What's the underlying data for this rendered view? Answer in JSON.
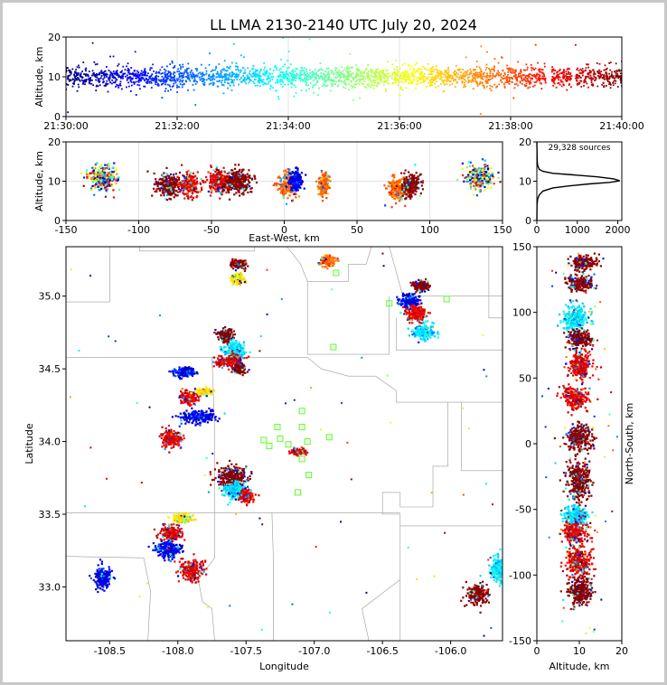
{
  "chart_data": [
    {
      "type": "scatter",
      "panel": "time-altitude",
      "title": "LL LMA 2130-2140 UTC July 20, 2024",
      "xlabel": "",
      "ylabel": "Altitude, km",
      "xlim": [
        "21:30:00",
        "21:40:00"
      ],
      "ylim": [
        0,
        20
      ],
      "x_ticks": [
        "21:30:00",
        "21:32:00",
        "21:34:00",
        "21:36:00",
        "21:38:00",
        "21:40:00"
      ],
      "y_ticks": [
        0,
        10,
        20
      ],
      "point_altitude_center_km": 10,
      "point_color_by": "time",
      "grid": true,
      "time_gaps": [
        {
          "start": "21:38:38",
          "end": "21:38:44"
        },
        {
          "start": "21:39:06",
          "end": "21:39:10"
        }
      ]
    },
    {
      "type": "scatter",
      "panel": "east-west-altitude",
      "xlabel": "East-West, km",
      "ylabel": "Altitude, km",
      "xlim": [
        -150,
        150
      ],
      "ylim": [
        0,
        20
      ],
      "x_ticks": [
        -150,
        -100,
        -50,
        0,
        50,
        100,
        150
      ],
      "y_ticks": [
        0,
        10,
        20
      ],
      "grid": true,
      "clusters_km": [
        {
          "x": -125,
          "spread": 8,
          "alt": 11,
          "color": "mixed"
        },
        {
          "x": -80,
          "spread": 7,
          "alt": 9,
          "color": "dark-red"
        },
        {
          "x": -65,
          "spread": 6,
          "alt": 9,
          "color": "red"
        },
        {
          "x": -45,
          "spread": 6,
          "alt": 10,
          "color": "red"
        },
        {
          "x": -32,
          "spread": 8,
          "alt": 10,
          "color": "dark-red"
        },
        {
          "x": 2,
          "spread": 5,
          "alt": 9,
          "color": "orange"
        },
        {
          "x": 8,
          "spread": 4,
          "alt": 10,
          "color": "blue"
        },
        {
          "x": 27,
          "spread": 3,
          "alt": 9,
          "color": "orange"
        },
        {
          "x": 78,
          "spread": 5,
          "alt": 8,
          "color": "orange"
        },
        {
          "x": 87,
          "spread": 5,
          "alt": 9,
          "color": "dark-red"
        },
        {
          "x": 135,
          "spread": 8,
          "alt": 11,
          "color": "mixed"
        }
      ]
    },
    {
      "type": "line",
      "panel": "altitude-histogram",
      "annotation": "29,328 sources",
      "xlim": [
        0,
        2100
      ],
      "ylim": [
        0,
        20
      ],
      "x_ticks": [
        0,
        1000,
        2000
      ],
      "y_ticks": [
        0,
        10,
        20
      ],
      "x": [
        0,
        5,
        20,
        60,
        150,
        400,
        800,
        1300,
        1800,
        2050,
        1900,
        1500,
        900,
        400,
        150,
        60,
        40,
        20,
        8,
        0
      ],
      "y": [
        0,
        4,
        5.5,
        6.5,
        7.5,
        8.3,
        8.8,
        9.3,
        9.7,
        10.1,
        10.6,
        11.1,
        11.6,
        12.0,
        12.5,
        13.0,
        13.5,
        14.0,
        15.0,
        20
      ]
    },
    {
      "type": "scatter",
      "panel": "plan-view",
      "xlabel": "Longitude",
      "ylabel": "Latitude",
      "xlim": [
        -108.82,
        -105.62
      ],
      "ylim": [
        32.63,
        35.34
      ],
      "x_ticks": [
        -108.5,
        -108.0,
        -107.5,
        -107.0,
        -106.5,
        -106.0
      ],
      "y_ticks": [
        33.0,
        33.5,
        34.0,
        34.5,
        35.0
      ],
      "clusters": [
        {
          "lon": -107.55,
          "lat": 35.22,
          "rx": 0.05,
          "ry": 0.03,
          "color": "dark-red"
        },
        {
          "lon": -107.56,
          "lat": 35.12,
          "rx": 0.04,
          "ry": 0.03,
          "color": "yellow"
        },
        {
          "lon": -106.9,
          "lat": 35.24,
          "rx": 0.05,
          "ry": 0.03,
          "color": "orange"
        },
        {
          "lon": -106.22,
          "lat": 35.07,
          "rx": 0.05,
          "ry": 0.03,
          "color": "dark-red"
        },
        {
          "lon": -106.3,
          "lat": 34.97,
          "rx": 0.07,
          "ry": 0.04,
          "color": "blue"
        },
        {
          "lon": -106.25,
          "lat": 34.88,
          "rx": 0.07,
          "ry": 0.05,
          "color": "red"
        },
        {
          "lon": -106.2,
          "lat": 34.75,
          "rx": 0.07,
          "ry": 0.05,
          "color": "cyan"
        },
        {
          "lon": -107.65,
          "lat": 34.73,
          "rx": 0.05,
          "ry": 0.04,
          "color": "dark-red"
        },
        {
          "lon": -107.58,
          "lat": 34.63,
          "rx": 0.07,
          "ry": 0.05,
          "color": "cyan"
        },
        {
          "lon": -107.62,
          "lat": 34.55,
          "rx": 0.09,
          "ry": 0.04,
          "color": "red"
        },
        {
          "lon": -107.55,
          "lat": 34.5,
          "rx": 0.04,
          "ry": 0.03,
          "color": "dark-red"
        },
        {
          "lon": -107.95,
          "lat": 34.48,
          "rx": 0.07,
          "ry": 0.03,
          "color": "blue"
        },
        {
          "lon": -107.92,
          "lat": 34.3,
          "rx": 0.06,
          "ry": 0.04,
          "color": "red"
        },
        {
          "lon": -107.8,
          "lat": 34.34,
          "rx": 0.05,
          "ry": 0.02,
          "color": "yellow"
        },
        {
          "lon": -107.85,
          "lat": 34.17,
          "rx": 0.12,
          "ry": 0.04,
          "color": "blue"
        },
        {
          "lon": -108.05,
          "lat": 34.02,
          "rx": 0.07,
          "ry": 0.05,
          "color": "red"
        },
        {
          "lon": -107.6,
          "lat": 33.75,
          "rx": 0.1,
          "ry": 0.07,
          "color": "dark-red"
        },
        {
          "lon": -107.58,
          "lat": 33.66,
          "rx": 0.07,
          "ry": 0.06,
          "color": "cyan"
        },
        {
          "lon": -107.5,
          "lat": 33.62,
          "rx": 0.05,
          "ry": 0.04,
          "color": "red"
        },
        {
          "lon": -107.12,
          "lat": 33.93,
          "rx": 0.05,
          "ry": 0.02,
          "color": "red"
        },
        {
          "lon": -107.97,
          "lat": 33.47,
          "rx": 0.06,
          "ry": 0.03,
          "color": "yellow"
        },
        {
          "lon": -108.05,
          "lat": 33.37,
          "rx": 0.07,
          "ry": 0.05,
          "color": "red"
        },
        {
          "lon": -108.07,
          "lat": 33.26,
          "rx": 0.09,
          "ry": 0.05,
          "color": "blue"
        },
        {
          "lon": -107.9,
          "lat": 33.12,
          "rx": 0.07,
          "ry": 0.07,
          "color": "red"
        },
        {
          "lon": -108.55,
          "lat": 33.07,
          "rx": 0.05,
          "ry": 0.07,
          "color": "blue"
        },
        {
          "lon": -105.8,
          "lat": 32.95,
          "rx": 0.07,
          "ry": 0.06,
          "color": "dark-red"
        },
        {
          "lon": -105.65,
          "lat": 33.12,
          "rx": 0.05,
          "ry": 0.08,
          "color": "cyan"
        }
      ],
      "stations": [
        {
          "lon": -106.84,
          "lat": 35.16
        },
        {
          "lon": -106.03,
          "lat": 34.98
        },
        {
          "lon": -106.45,
          "lat": 34.95
        },
        {
          "lon": -106.86,
          "lat": 34.65
        },
        {
          "lon": -107.09,
          "lat": 34.21
        },
        {
          "lon": -107.27,
          "lat": 34.1
        },
        {
          "lon": -107.09,
          "lat": 34.1
        },
        {
          "lon": -107.37,
          "lat": 34.01
        },
        {
          "lon": -107.25,
          "lat": 34.02
        },
        {
          "lon": -107.33,
          "lat": 33.97
        },
        {
          "lon": -107.19,
          "lat": 33.98
        },
        {
          "lon": -107.05,
          "lat": 34.0
        },
        {
          "lon": -106.89,
          "lat": 34.03
        },
        {
          "lon": -107.09,
          "lat": 33.88
        },
        {
          "lon": -107.04,
          "lat": 33.77
        },
        {
          "lon": -107.12,
          "lat": 33.65
        }
      ],
      "borders": [
        [
          [
            -108.82,
            34.96
          ],
          [
            -108.5,
            34.96
          ],
          [
            -108.5,
            35.34
          ]
        ],
        [
          [
            -108.28,
            35.34
          ],
          [
            -108.28,
            35.31
          ],
          [
            -107.44,
            35.31
          ],
          [
            -107.44,
            35.34
          ]
        ],
        [
          [
            -107.2,
            35.34
          ],
          [
            -107.1,
            35.22
          ],
          [
            -107.05,
            35.1
          ],
          [
            -106.75,
            35.1
          ],
          [
            -106.75,
            35.22
          ],
          [
            -106.62,
            35.22
          ],
          [
            -106.58,
            35.34
          ]
        ],
        [
          [
            -106.45,
            35.34
          ],
          [
            -106.35,
            35.0
          ],
          [
            -105.62,
            35.0
          ]
        ],
        [
          [
            -107.05,
            35.1
          ],
          [
            -107.05,
            34.6
          ],
          [
            -106.45,
            34.6
          ],
          [
            -106.45,
            35.0
          ]
        ],
        [
          [
            -105.72,
            35.34
          ],
          [
            -105.72,
            34.85
          ],
          [
            -105.62,
            34.85
          ]
        ],
        [
          [
            -106.4,
            34.85
          ],
          [
            -106.4,
            34.63
          ],
          [
            -105.62,
            34.63
          ]
        ],
        [
          [
            -108.82,
            34.58
          ],
          [
            -107.05,
            34.58
          ]
        ],
        [
          [
            -107.05,
            34.58
          ],
          [
            -106.95,
            34.5
          ],
          [
            -106.75,
            34.45
          ],
          [
            -106.55,
            34.45
          ],
          [
            -106.4,
            34.35
          ],
          [
            -106.4,
            34.27
          ],
          [
            -105.62,
            34.27
          ]
        ],
        [
          [
            -105.92,
            34.27
          ],
          [
            -105.92,
            33.8
          ],
          [
            -105.62,
            33.8
          ]
        ],
        [
          [
            -106.02,
            34.27
          ],
          [
            -106.02,
            33.83
          ],
          [
            -106.13,
            33.83
          ],
          [
            -106.13,
            33.55
          ],
          [
            -106.37,
            33.55
          ],
          [
            -106.37,
            33.65
          ]
        ],
        [
          [
            -106.37,
            33.65
          ],
          [
            -106.5,
            33.65
          ],
          [
            -106.5,
            33.5
          ],
          [
            -106.37,
            33.5
          ],
          [
            -106.37,
            33.42
          ]
        ],
        [
          [
            -108.82,
            33.51
          ],
          [
            -106.37,
            33.51
          ]
        ],
        [
          [
            -107.75,
            34.58
          ],
          [
            -107.73,
            34.1
          ],
          [
            -107.73,
            33.2
          ],
          [
            -107.85,
            33.05
          ],
          [
            -107.82,
            32.9
          ],
          [
            -107.75,
            32.85
          ],
          [
            -107.73,
            32.63
          ]
        ],
        [
          [
            -108.82,
            33.21
          ],
          [
            -108.25,
            33.2
          ],
          [
            -108.2,
            32.97
          ],
          [
            -108.22,
            32.63
          ]
        ],
        [
          [
            -107.31,
            33.51
          ],
          [
            -107.3,
            33.2
          ],
          [
            -107.3,
            32.63
          ]
        ],
        [
          [
            -106.37,
            33.42
          ],
          [
            -105.62,
            33.42
          ]
        ],
        [
          [
            -106.37,
            33.05
          ],
          [
            -106.65,
            32.85
          ],
          [
            -106.6,
            32.63
          ]
        ],
        [
          [
            -106.37,
            33.42
          ],
          [
            -106.37,
            32.63
          ]
        ]
      ]
    },
    {
      "type": "scatter",
      "panel": "altitude-north-south",
      "xlabel": "Altitude, km",
      "ylabel": "North-South, km",
      "xlim": [
        0,
        20
      ],
      "ylim": [
        -150,
        150
      ],
      "x_ticks": [
        0,
        10,
        20
      ],
      "y_ticks": [
        -150,
        -100,
        -50,
        0,
        50,
        100,
        150
      ],
      "clusters_km": [
        {
          "y": 138,
          "spread": 5,
          "alt": 11,
          "color": "dark-red"
        },
        {
          "y": 122,
          "spread": 6,
          "alt": 10,
          "color": "dark-red"
        },
        {
          "y": 95,
          "spread": 10,
          "alt": 9,
          "color": "cyan"
        },
        {
          "y": 80,
          "spread": 6,
          "alt": 10,
          "color": "dark-red"
        },
        {
          "y": 60,
          "spread": 10,
          "alt": 10,
          "color": "red"
        },
        {
          "y": 35,
          "spread": 8,
          "alt": 9,
          "color": "red"
        },
        {
          "y": 5,
          "spread": 10,
          "alt": 10,
          "color": "dark-red"
        },
        {
          "y": -28,
          "spread": 14,
          "alt": 10,
          "color": "dark-red"
        },
        {
          "y": -55,
          "spread": 8,
          "alt": 9,
          "color": "cyan"
        },
        {
          "y": -68,
          "spread": 8,
          "alt": 9,
          "color": "red"
        },
        {
          "y": -90,
          "spread": 12,
          "alt": 10,
          "color": "red"
        },
        {
          "y": -112,
          "spread": 10,
          "alt": 10,
          "color": "dark-red"
        }
      ]
    }
  ]
}
